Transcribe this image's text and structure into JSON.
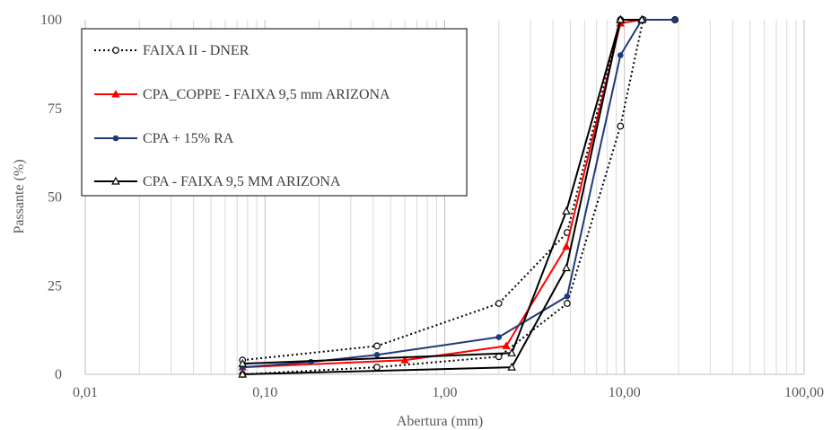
{
  "chart_data": {
    "type": "line",
    "x_scale": "log",
    "xlabel": "Abertura (mm)",
    "ylabel": "Passante (%)",
    "xlim": [
      0.01,
      100
    ],
    "ylim": [
      0,
      100
    ],
    "x_ticks": [
      0.01,
      0.1,
      1,
      10,
      100
    ],
    "x_tick_labels": [
      "0,01",
      "0,10",
      "1,00",
      "10,00",
      "100,00"
    ],
    "y_ticks": [
      0,
      25,
      50,
      75,
      100
    ],
    "y_tick_labels": [
      "0",
      "25",
      "50",
      "75",
      "100"
    ],
    "grid": "vertical minor and major",
    "legend_position": "top-left",
    "series": [
      {
        "name": "FAIXA II - DNER",
        "color": "#000000",
        "line_style": "dotted",
        "marker": "open-circle",
        "segments": [
          [
            [
              0.075,
              4
            ],
            [
              0.42,
              8
            ],
            [
              2.0,
              20
            ],
            [
              4.8,
              40
            ],
            [
              9.5,
              100
            ],
            [
              12.7,
              100
            ],
            [
              19.1,
              100
            ]
          ],
          [
            [
              0.075,
              0
            ],
            [
              0.42,
              2
            ],
            [
              2.0,
              5
            ],
            [
              4.8,
              20
            ],
            [
              9.5,
              70
            ],
            [
              12.7,
              100
            ],
            [
              19.1,
              100
            ]
          ]
        ]
      },
      {
        "name": "CPA_COPPE - FAIXA 9,5 mm ARIZONA",
        "color": "#ff0000",
        "line_style": "solid",
        "marker": "filled-triangle",
        "segments": [
          [
            [
              0.075,
              2
            ],
            [
              0.6,
              4
            ],
            [
              2.2,
              8
            ],
            [
              4.75,
              36
            ],
            [
              9.5,
              99
            ],
            [
              12.5,
              100
            ]
          ]
        ]
      },
      {
        "name": "CPA + 15% RA",
        "color": "#1f3a7a",
        "line_style": "solid",
        "marker": "filled-circle",
        "segments": [
          [
            [
              0.075,
              2
            ],
            [
              0.18,
              3.5
            ],
            [
              0.42,
              5.5
            ],
            [
              2.0,
              10.5
            ],
            [
              4.8,
              22
            ],
            [
              9.5,
              90
            ],
            [
              12.5,
              100
            ],
            [
              19.1,
              100
            ]
          ]
        ]
      },
      {
        "name": "CPA - FAIXA 9,5 MM ARIZONA",
        "color": "#000000",
        "line_style": "solid",
        "marker": "open-triangle",
        "segments": [
          [
            [
              0.075,
              3
            ],
            [
              2.36,
              6
            ],
            [
              4.75,
              46
            ],
            [
              9.5,
              100
            ],
            [
              12.5,
              100
            ]
          ],
          [
            [
              0.075,
              0
            ],
            [
              2.36,
              2
            ],
            [
              4.75,
              30
            ],
            [
              9.5,
              100
            ],
            [
              12.5,
              100
            ]
          ]
        ]
      }
    ]
  }
}
